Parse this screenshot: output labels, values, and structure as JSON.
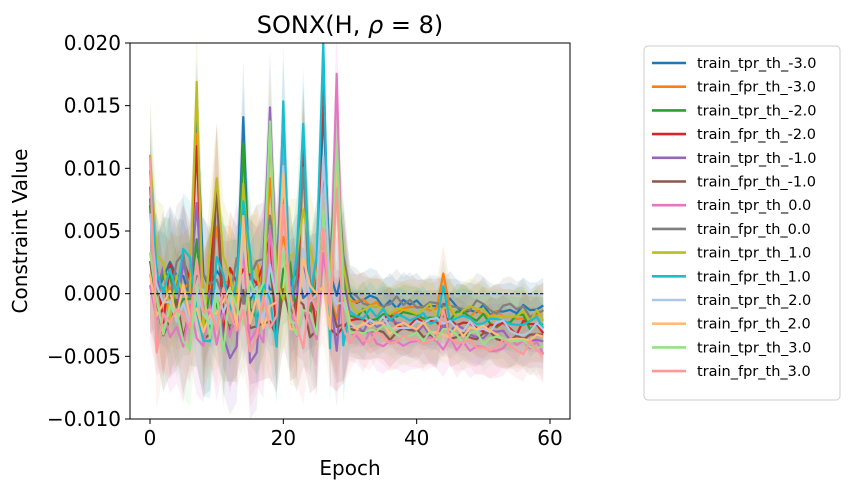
{
  "chart_data": {
    "type": "line",
    "title_prefix": "SONX(H, ",
    "title_rho": "ρ",
    "title_suffix": " = 8)",
    "xlabel": "Epoch",
    "ylabel": "Constraint Value",
    "xlim": [
      -3,
      63
    ],
    "ylim": [
      -0.01,
      0.02
    ],
    "xticks": [
      0,
      20,
      40,
      60
    ],
    "yticks": [
      -0.01,
      -0.005,
      0.0,
      0.005,
      0.01,
      0.015,
      0.02
    ],
    "ytick_labels": [
      "−0.010",
      "−0.005",
      "0.000",
      "0.005",
      "0.010",
      "0.015",
      "0.020"
    ],
    "xtick_labels": [
      "0",
      "20",
      "40",
      "60"
    ],
    "reference_line": {
      "y": 0.0,
      "color": "#0000cc",
      "style": "dashed"
    },
    "legend_position": "right-outside",
    "series": [
      {
        "name": "train_tpr_th_-3.0",
        "color": "#1f77b4"
      },
      {
        "name": "train_fpr_th_-3.0",
        "color": "#ff7f0e"
      },
      {
        "name": "train_tpr_th_-2.0",
        "color": "#2ca02c"
      },
      {
        "name": "train_fpr_th_-2.0",
        "color": "#d62728"
      },
      {
        "name": "train_tpr_th_-1.0",
        "color": "#9467bd"
      },
      {
        "name": "train_fpr_th_-1.0",
        "color": "#8c564b"
      },
      {
        "name": "train_tpr_th_0.0",
        "color": "#e377c2"
      },
      {
        "name": "train_fpr_th_0.0",
        "color": "#7f7f7f"
      },
      {
        "name": "train_tpr_th_1.0",
        "color": "#bcbd22"
      },
      {
        "name": "train_fpr_th_1.0",
        "color": "#17becf"
      },
      {
        "name": "train_tpr_th_2.0",
        "color": "#aec7e8"
      },
      {
        "name": "train_fpr_th_2.0",
        "color": "#ffbb78"
      },
      {
        "name": "train_tpr_th_3.0",
        "color": "#98df8a"
      },
      {
        "name": "train_fpr_th_3.0",
        "color": "#ff9896"
      }
    ]
  }
}
